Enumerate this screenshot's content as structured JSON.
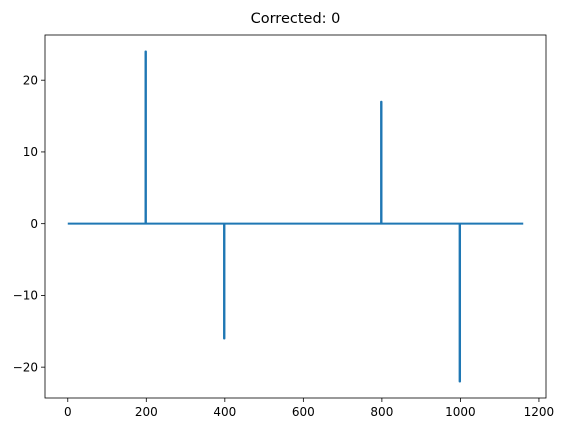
{
  "chart_data": {
    "type": "line",
    "title": "Corrected: 0",
    "xlabel": "",
    "ylabel": "",
    "xlim": [
      -58,
      1218
    ],
    "ylim": [
      -24.3,
      26.3
    ],
    "xticks": [
      0,
      200,
      400,
      600,
      800,
      1000,
      1200
    ],
    "xtick_labels": [
      "0",
      "200",
      "400",
      "600",
      "800",
      "1000",
      "1200"
    ],
    "yticks": [
      -20,
      -10,
      0,
      10,
      20
    ],
    "ytick_labels": [
      "−20",
      "−10",
      "0",
      "10",
      "20"
    ],
    "grid": false,
    "series": [
      {
        "color": "#1f77b4",
        "x": [
          0,
          198,
          198,
          199,
          199,
          200,
          398,
          398,
          399,
          399,
          400,
          798,
          798,
          799,
          799,
          800,
          998,
          998,
          999,
          999,
          1000,
          1160
        ],
        "y": [
          0,
          0,
          24,
          24,
          0,
          0,
          0,
          -16,
          -16,
          0,
          0,
          0,
          17,
          17,
          0,
          0,
          0,
          -22,
          -22,
          0,
          0,
          0
        ]
      }
    ]
  }
}
